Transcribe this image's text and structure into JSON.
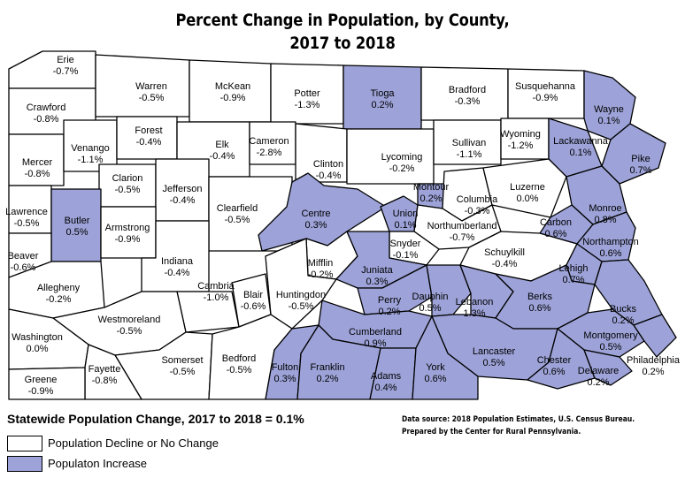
{
  "title": {
    "line1": "Percent Change in Population, by County,",
    "line2": "2017 to 2018"
  },
  "statewide": "Statewide Population Change, 2017 to 2018 = 0.1%",
  "legend": {
    "decline": {
      "label": "Population Decline or No Change",
      "color": "#ffffff"
    },
    "increase": {
      "label": "Populaton Increase",
      "color": "#9da3d8"
    }
  },
  "source": {
    "line1": "Data source: 2018 Population Estimates, U.S. Census Bureau.",
    "line2": "Prepared by the Center for Rural Pennsylvania."
  },
  "colors": {
    "increase": "#9da3d8",
    "decline": "#ffffff",
    "border": "#000000"
  },
  "counties": [
    {
      "name": "Erie",
      "value": "-0.7%",
      "change": -0.7
    },
    {
      "name": "Crawford",
      "value": "-0.8%",
      "change": -0.8
    },
    {
      "name": "Warren",
      "value": "-0.5%",
      "change": -0.5
    },
    {
      "name": "McKean",
      "value": "-0.9%",
      "change": -0.9
    },
    {
      "name": "Potter",
      "value": "-1.3%",
      "change": -1.3
    },
    {
      "name": "Tioga",
      "value": "0.2%",
      "change": 0.2
    },
    {
      "name": "Bradford",
      "value": "-0.3%",
      "change": -0.3
    },
    {
      "name": "Susquehanna",
      "value": "-0.9%",
      "change": -0.9
    },
    {
      "name": "Wayne",
      "value": "0.1%",
      "change": 0.1
    },
    {
      "name": "Mercer",
      "value": "-0.8%",
      "change": -0.8
    },
    {
      "name": "Venango",
      "value": "-1.1%",
      "change": -1.1
    },
    {
      "name": "Forest",
      "value": "-0.4%",
      "change": -0.4
    },
    {
      "name": "Elk",
      "value": "-0.4%",
      "change": -0.4
    },
    {
      "name": "Cameron",
      "value": "-2.8%",
      "change": -2.8
    },
    {
      "name": "Clinton",
      "value": "-0.4%",
      "change": -0.4
    },
    {
      "name": "Lycoming",
      "value": "-0.2%",
      "change": -0.2
    },
    {
      "name": "Sullivan",
      "value": "-1.1%",
      "change": -1.1
    },
    {
      "name": "Wyoming",
      "value": "-1.2%",
      "change": -1.2
    },
    {
      "name": "Lackawanna",
      "value": "0.1%",
      "change": 0.1
    },
    {
      "name": "Pike",
      "value": "0.7%",
      "change": 0.7
    },
    {
      "name": "Clarion",
      "value": "-0.5%",
      "change": -0.5
    },
    {
      "name": "Jefferson",
      "value": "-0.4%",
      "change": -0.4
    },
    {
      "name": "Clearfield",
      "value": "-0.5%",
      "change": -0.5
    },
    {
      "name": "Lawrence",
      "value": "-0.5%",
      "change": -0.5
    },
    {
      "name": "Butler",
      "value": "0.5%",
      "change": 0.5
    },
    {
      "name": "Armstrong",
      "value": "-0.9%",
      "change": -0.9
    },
    {
      "name": "Centre",
      "value": "0.3%",
      "change": 0.3
    },
    {
      "name": "Union",
      "value": "0.1%",
      "change": 0.1
    },
    {
      "name": "Montour",
      "value": "0.2%",
      "change": 0.2
    },
    {
      "name": "Columbia",
      "value": "-0.3%",
      "change": -0.3
    },
    {
      "name": "Luzerne",
      "value": "0.0%",
      "change": 0.0
    },
    {
      "name": "Monroe",
      "value": "0.8%",
      "change": 0.8
    },
    {
      "name": "Carbon",
      "value": "0.6%",
      "change": 0.6
    },
    {
      "name": "Northumberland",
      "value": "-0.7%",
      "change": -0.7
    },
    {
      "name": "Snyder",
      "value": "-0.1%",
      "change": -0.1
    },
    {
      "name": "Northampton",
      "value": "0.6%",
      "change": 0.6
    },
    {
      "name": "Beaver",
      "value": "-0.6%",
      "change": -0.6
    },
    {
      "name": "Indiana",
      "value": "-0.4%",
      "change": -0.4
    },
    {
      "name": "Mifflin",
      "value": "-0.2%",
      "change": -0.2
    },
    {
      "name": "Juniata",
      "value": "0.3%",
      "change": 0.3
    },
    {
      "name": "Schuylkill",
      "value": "-0.4%",
      "change": -0.4
    },
    {
      "name": "Lehigh",
      "value": "0.7%",
      "change": 0.7
    },
    {
      "name": "Allegheny",
      "value": "-0.2%",
      "change": -0.2
    },
    {
      "name": "Cambria",
      "value": "-1.0%",
      "change": -1.0
    },
    {
      "name": "Blair",
      "value": "-0.6%",
      "change": -0.6
    },
    {
      "name": "Huntingdon",
      "value": "-0.5%",
      "change": -0.5
    },
    {
      "name": "Perry",
      "value": "0.2%",
      "change": 0.2
    },
    {
      "name": "Dauphin",
      "value": "0.5%",
      "change": 0.5
    },
    {
      "name": "Lebanon",
      "value": "1.3%",
      "change": 1.3
    },
    {
      "name": "Berks",
      "value": "0.6%",
      "change": 0.6
    },
    {
      "name": "Bucks",
      "value": "0.2%",
      "change": 0.2
    },
    {
      "name": "Westmoreland",
      "value": "-0.5%",
      "change": -0.5
    },
    {
      "name": "Cumberland",
      "value": "0.9%",
      "change": 0.9
    },
    {
      "name": "Montgomery",
      "value": "0.5%",
      "change": 0.5
    },
    {
      "name": "Washington",
      "value": "0.0%",
      "change": 0.0
    },
    {
      "name": "Lancaster",
      "value": "0.5%",
      "change": 0.5
    },
    {
      "name": "Philadelphia",
      "value": "0.2%",
      "change": 0.2
    },
    {
      "name": "Somerset",
      "value": "-0.5%",
      "change": -0.5
    },
    {
      "name": "Bedford",
      "value": "-0.5%",
      "change": -0.5
    },
    {
      "name": "Fulton",
      "value": "0.3%",
      "change": 0.3
    },
    {
      "name": "Franklin",
      "value": "0.2%",
      "change": 0.2
    },
    {
      "name": "Adams",
      "value": "0.4%",
      "change": 0.4
    },
    {
      "name": "York",
      "value": "0.6%",
      "change": 0.6
    },
    {
      "name": "Chester",
      "value": "0.6%",
      "change": 0.6
    },
    {
      "name": "Delaware",
      "value": "0.2%",
      "change": 0.2
    },
    {
      "name": "Fayette",
      "value": "-0.8%",
      "change": -0.8
    },
    {
      "name": "Greene",
      "value": "-0.9%",
      "change": -0.9
    }
  ]
}
